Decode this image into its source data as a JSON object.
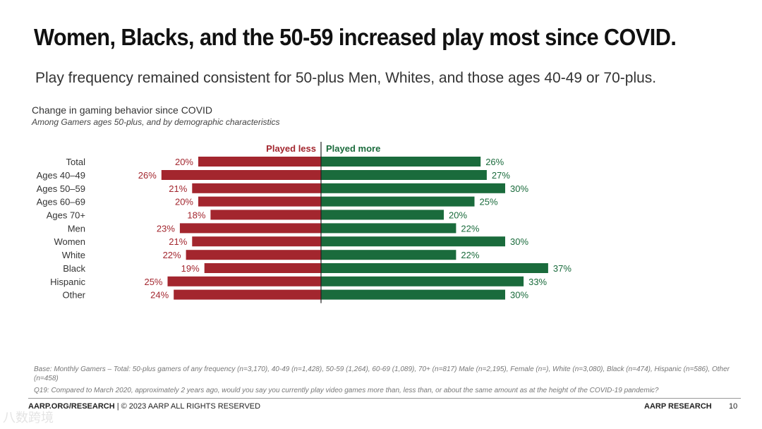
{
  "title": "Women, Blacks, and the 50-59 increased play most since COVID.",
  "subtitle": "Play frequency remained consistent for 50-plus Men, Whites, and those ages 40-49 or 70-plus.",
  "chart_data": {
    "type": "bar",
    "orientation": "horizontal-diverging",
    "title": "Change in gaming behavior since COVID",
    "subtitle": "Among Gamers ages 50-plus, and by demographic characteristics",
    "legend": {
      "left": "Played less",
      "right": "Played more"
    },
    "colors": {
      "less": "#a3262e",
      "more": "#1a6b3c"
    },
    "categories": [
      "Total",
      "Ages 40–49",
      "Ages 50–59",
      "Ages 60–69",
      "Ages 70+",
      "Men",
      "Women",
      "White",
      "Black",
      "Hispanic",
      "Other"
    ],
    "groups": [
      [
        0
      ],
      [
        1,
        2,
        3,
        4
      ],
      [
        5,
        6
      ],
      [
        7,
        8,
        9,
        10
      ]
    ],
    "series": [
      {
        "name": "Played less",
        "values": [
          20,
          26,
          21,
          20,
          18,
          23,
          21,
          22,
          19,
          25,
          24
        ]
      },
      {
        "name": "Played more",
        "values": [
          26,
          27,
          30,
          25,
          20,
          22,
          30,
          22,
          37,
          33,
          30
        ]
      }
    ],
    "value_suffix": "%",
    "xlim": [
      0,
      40
    ]
  },
  "footnotes": {
    "base": "Base: Monthly Gamers – Total: 50-plus gamers of any frequency (n=3,170), 40-49 (n=1,428), 50-59 (1,264), 60-69 (1,089), 70+ (n=817) Male (n=2,195), Female (n=), White (n=3,080), Black (n=474), Hispanic (n=586), Other (n=458)",
    "question": "Q19: Compared to March 2020, approximately 2 years ago, would you say you currently play video games more than, less than, or about the same amount as at the height of the COVID-19 pandemic?"
  },
  "footer": {
    "left_bold": "AARP.ORG/RESEARCH",
    "left_rest": " | © 2023 AARP ALL RIGHTS RESERVED",
    "right": "AARP RESEARCH",
    "page": "10"
  },
  "watermark": "八数跨境"
}
